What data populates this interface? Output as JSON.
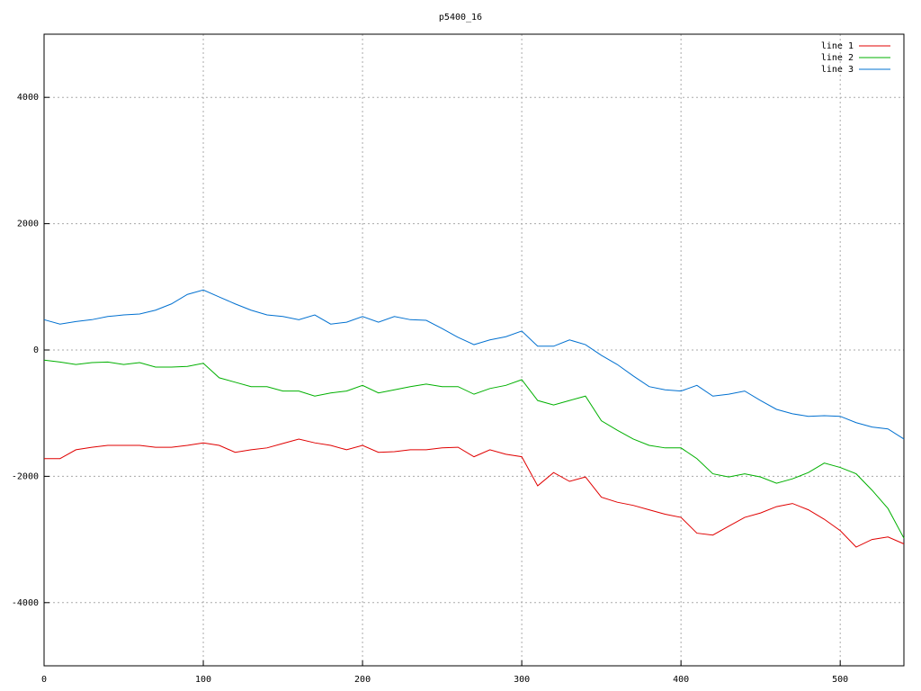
{
  "chart_data": {
    "type": "line",
    "title": "p5400_16",
    "x": [
      0,
      10,
      20,
      30,
      40,
      50,
      60,
      70,
      80,
      90,
      100,
      110,
      120,
      130,
      140,
      150,
      160,
      170,
      180,
      190,
      200,
      210,
      220,
      230,
      240,
      250,
      260,
      270,
      280,
      290,
      300,
      310,
      320,
      330,
      340,
      350,
      360,
      370,
      380,
      390,
      400,
      410,
      420,
      430,
      440,
      450,
      460,
      470,
      480,
      490,
      500,
      510,
      520,
      530,
      540
    ],
    "series": [
      {
        "name": "line 1",
        "color": "#e00000",
        "values": [
          -1720,
          -1720,
          -1580,
          -1540,
          -1510,
          -1510,
          -1510,
          -1540,
          -1540,
          -1510,
          -1470,
          -1510,
          -1620,
          -1580,
          -1550,
          -1480,
          -1410,
          -1470,
          -1510,
          -1580,
          -1510,
          -1620,
          -1610,
          -1580,
          -1580,
          -1550,
          -1540,
          -1690,
          -1580,
          -1650,
          -1690,
          -2150,
          -1940,
          -2080,
          -2010,
          -2330,
          -2410,
          -2460,
          -2530,
          -2600,
          -2650,
          -2900,
          -2930,
          -2790,
          -2650,
          -2580,
          -2480,
          -2430,
          -2530,
          -2680,
          -2860,
          -3120,
          -3000,
          -2960,
          -3070
        ]
      },
      {
        "name": "line 2",
        "color": "#00b000",
        "values": [
          -160,
          -190,
          -230,
          -200,
          -190,
          -230,
          -200,
          -270,
          -270,
          -260,
          -210,
          -440,
          -510,
          -580,
          -580,
          -650,
          -650,
          -730,
          -680,
          -650,
          -560,
          -680,
          -630,
          -580,
          -540,
          -580,
          -580,
          -700,
          -610,
          -560,
          -470,
          -800,
          -870,
          -800,
          -730,
          -1120,
          -1270,
          -1410,
          -1510,
          -1550,
          -1550,
          -1720,
          -1960,
          -2010,
          -1960,
          -2010,
          -2110,
          -2040,
          -1940,
          -1790,
          -1860,
          -1960,
          -2220,
          -2510,
          -2980
        ]
      },
      {
        "name": "line 3",
        "color": "#0070d0",
        "values": [
          480,
          410,
          450,
          480,
          530,
          555,
          570,
          630,
          730,
          880,
          950,
          840,
          730,
          630,
          555,
          530,
          480,
          555,
          410,
          440,
          530,
          440,
          530,
          480,
          470,
          340,
          200,
          85,
          160,
          210,
          300,
          60,
          60,
          160,
          85,
          -85,
          -230,
          -410,
          -580,
          -630,
          -650,
          -560,
          -730,
          -700,
          -650,
          -800,
          -940,
          -1010,
          -1050,
          -1040,
          -1050,
          -1150,
          -1220,
          -1250,
          -1410
        ]
      }
    ],
    "xlim": [
      0,
      540
    ],
    "ylim": [
      -5000,
      5000
    ],
    "xticks": [
      0,
      100,
      200,
      300,
      400,
      500
    ],
    "yticks": [
      -4000,
      -2000,
      0,
      2000,
      4000
    ],
    "grid": true,
    "legend": "top-right"
  }
}
